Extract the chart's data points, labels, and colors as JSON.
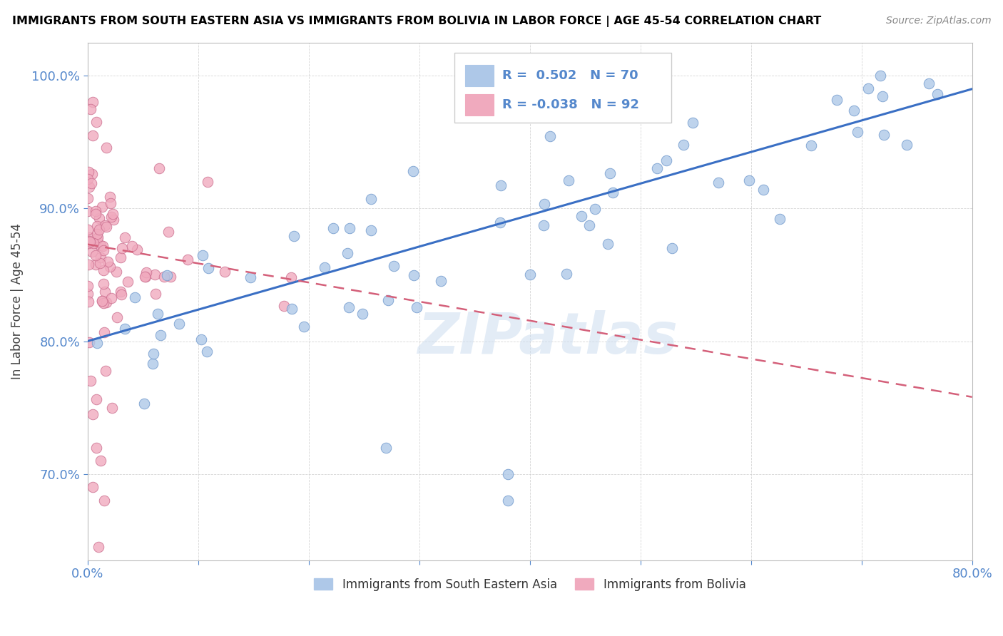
{
  "title": "IMMIGRANTS FROM SOUTH EASTERN ASIA VS IMMIGRANTS FROM BOLIVIA IN LABOR FORCE | AGE 45-54 CORRELATION CHART",
  "source": "Source: ZipAtlas.com",
  "ylabel": "In Labor Force | Age 45-54",
  "xmin": 0.0,
  "xmax": 0.8,
  "ymin": 0.635,
  "ymax": 1.025,
  "xtick_positions": [
    0.0,
    0.1,
    0.2,
    0.3,
    0.4,
    0.5,
    0.6,
    0.7,
    0.8
  ],
  "xtick_labels": [
    "0.0%",
    "",
    "",
    "",
    "",
    "",
    "",
    "",
    "80.0%"
  ],
  "ytick_positions": [
    0.7,
    0.8,
    0.9,
    1.0
  ],
  "ytick_labels": [
    "70.0%",
    "80.0%",
    "90.0%",
    "100.0%"
  ],
  "blue_color": "#aec8e8",
  "pink_color": "#f0aabe",
  "blue_line_color": "#3a6fc4",
  "pink_line_color": "#d4607a",
  "blue_marker_edge": "#7099cc",
  "pink_marker_edge": "#cc7090",
  "R_blue": 0.502,
  "N_blue": 70,
  "R_pink": -0.038,
  "N_pink": 92,
  "legend_label_blue": "Immigrants from South Eastern Asia",
  "legend_label_pink": "Immigrants from Bolivia",
  "watermark": "ZIPatlas",
  "tick_color": "#5588cc",
  "blue_line_y0": 0.8,
  "blue_line_y1": 0.99,
  "pink_line_y0": 0.873,
  "pink_line_y1": 0.758
}
